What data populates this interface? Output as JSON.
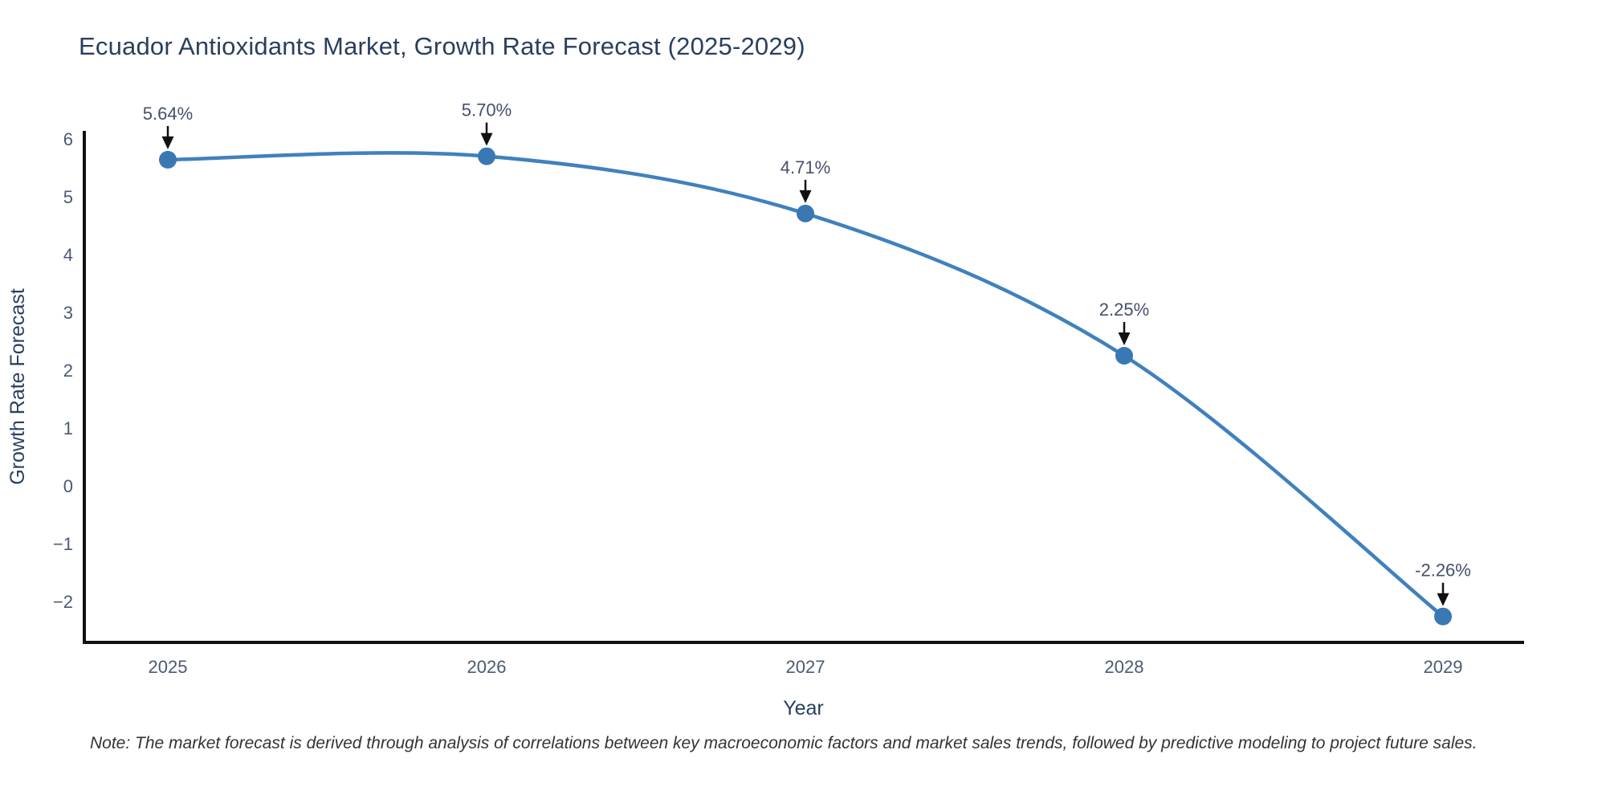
{
  "chart_data": {
    "type": "line",
    "title": "Ecuador Antioxidants Market, Growth Rate Forecast (2025-2029)",
    "xlabel": "Year",
    "ylabel": "Growth Rate Forecast",
    "categories": [
      "2025",
      "2026",
      "2027",
      "2028",
      "2029"
    ],
    "values": [
      5.64,
      5.7,
      4.71,
      2.25,
      -2.26
    ],
    "point_labels": [
      "5.64%",
      "5.70%",
      "4.71%",
      "2.25%",
      "-2.26%"
    ],
    "y_ticks": [
      6,
      5,
      4,
      3,
      2,
      1,
      0,
      -1,
      -2
    ],
    "y_tick_labels": [
      "6",
      "5",
      "4",
      "3",
      "2",
      "1",
      "0",
      "−1",
      "−2"
    ],
    "ylim": [
      -2.7,
      6.1
    ],
    "grid": false,
    "legend": "none",
    "line_shape": "spline",
    "colors": {
      "line": "#4081bd",
      "marker": "#3a78b3",
      "axis": "#111111",
      "title_text": "#2a3f5f",
      "tick_text": "#4a5a72",
      "annotation_text": "#44506a",
      "arrow": "#111111",
      "note_text": "#333333",
      "background": "#ffffff"
    }
  },
  "note": {
    "text": "Note: The market forecast is derived through analysis of correlations between key macroeconomic factors and market sales trends, followed by predictive modeling to project future sales."
  }
}
